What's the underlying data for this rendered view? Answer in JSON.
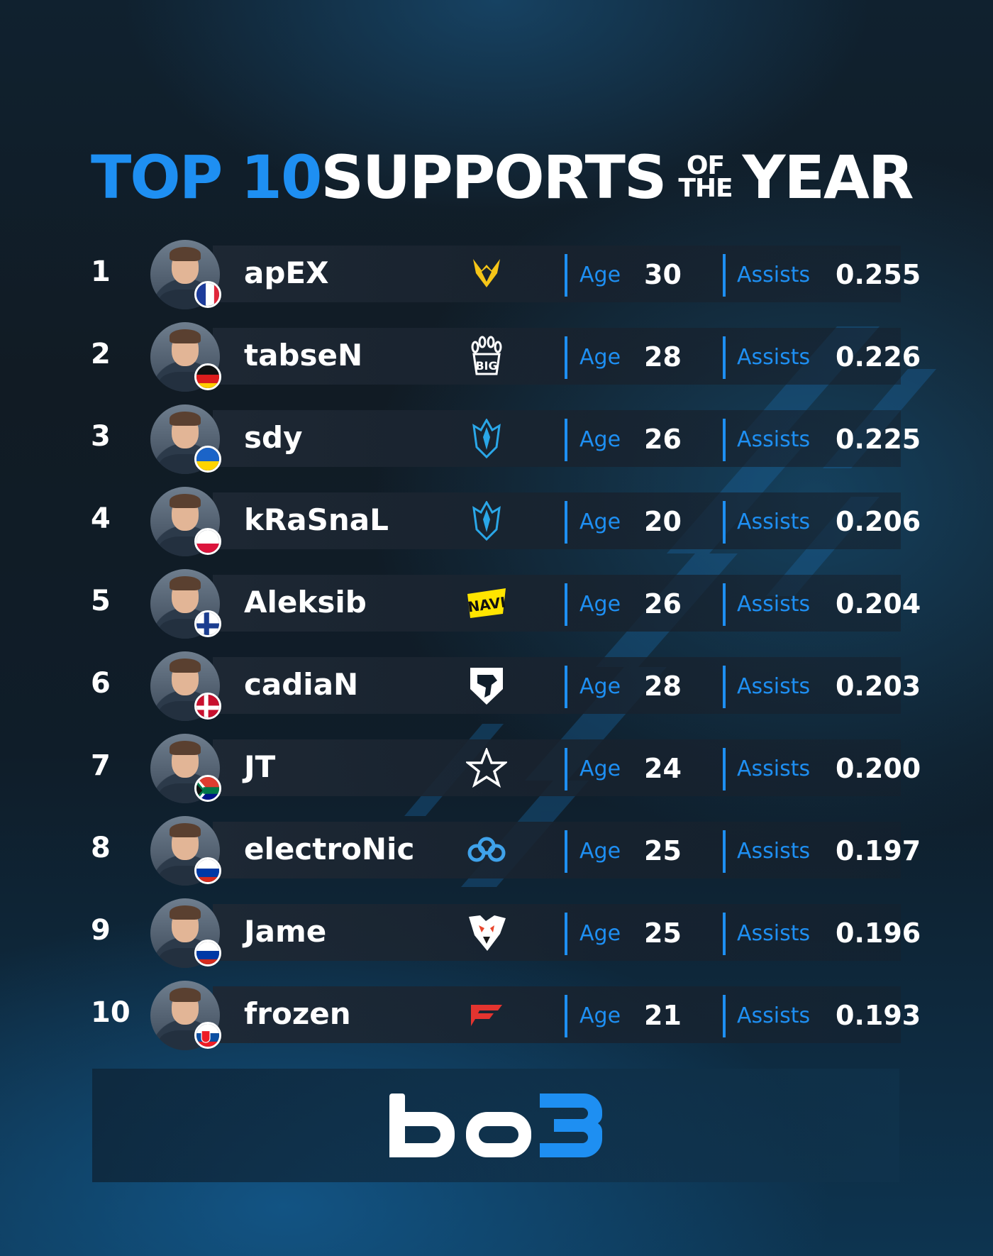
{
  "title": {
    "part1": "TOP 10",
    "part2": "SUPPORTS",
    "of": "OF",
    "the": "THE",
    "part3": "YEAR"
  },
  "labels": {
    "age": "Age",
    "assists": "Assists"
  },
  "colors": {
    "accent": "#1e8ff2",
    "text": "#ffffff",
    "background": "#111b24"
  },
  "players": [
    {
      "rank": "1",
      "name": "apEX",
      "age": "30",
      "assists": "0.255",
      "team_icon": "vitality-bee-logo",
      "flag": "france"
    },
    {
      "rank": "2",
      "name": "tabseN",
      "age": "28",
      "assists": "0.226",
      "team_icon": "big-paw-logo",
      "flag": "germany"
    },
    {
      "rank": "3",
      "name": "sdy",
      "age": "26",
      "assists": "0.225",
      "team_icon": "monte-logo",
      "flag": "ukraine"
    },
    {
      "rank": "4",
      "name": "kRaSnaL",
      "age": "20",
      "assists": "0.206",
      "team_icon": "monte-logo",
      "flag": "poland"
    },
    {
      "rank": "5",
      "name": "Aleksib",
      "age": "26",
      "assists": "0.204",
      "team_icon": "navi-logo",
      "flag": "finland"
    },
    {
      "rank": "6",
      "name": "cadiaN",
      "age": "28",
      "assists": "0.203",
      "team_icon": "liquid-horse-logo",
      "flag": "denmark"
    },
    {
      "rank": "7",
      "name": "JT",
      "age": "24",
      "assists": "0.200",
      "team_icon": "complexity-star-logo",
      "flag": "south-africa"
    },
    {
      "rank": "8",
      "name": "electroNic",
      "age": "25",
      "assists": "0.197",
      "team_icon": "cloud9-logo",
      "flag": "russia"
    },
    {
      "rank": "9",
      "name": "Jame",
      "age": "25",
      "assists": "0.196",
      "team_icon": "virtus-pro-bear-logo",
      "flag": "russia"
    },
    {
      "rank": "10",
      "name": "frozen",
      "age": "21",
      "assists": "0.193",
      "team_icon": "faze-logo",
      "flag": "slovakia"
    }
  ],
  "footer": {
    "logo_text": "bo3"
  }
}
